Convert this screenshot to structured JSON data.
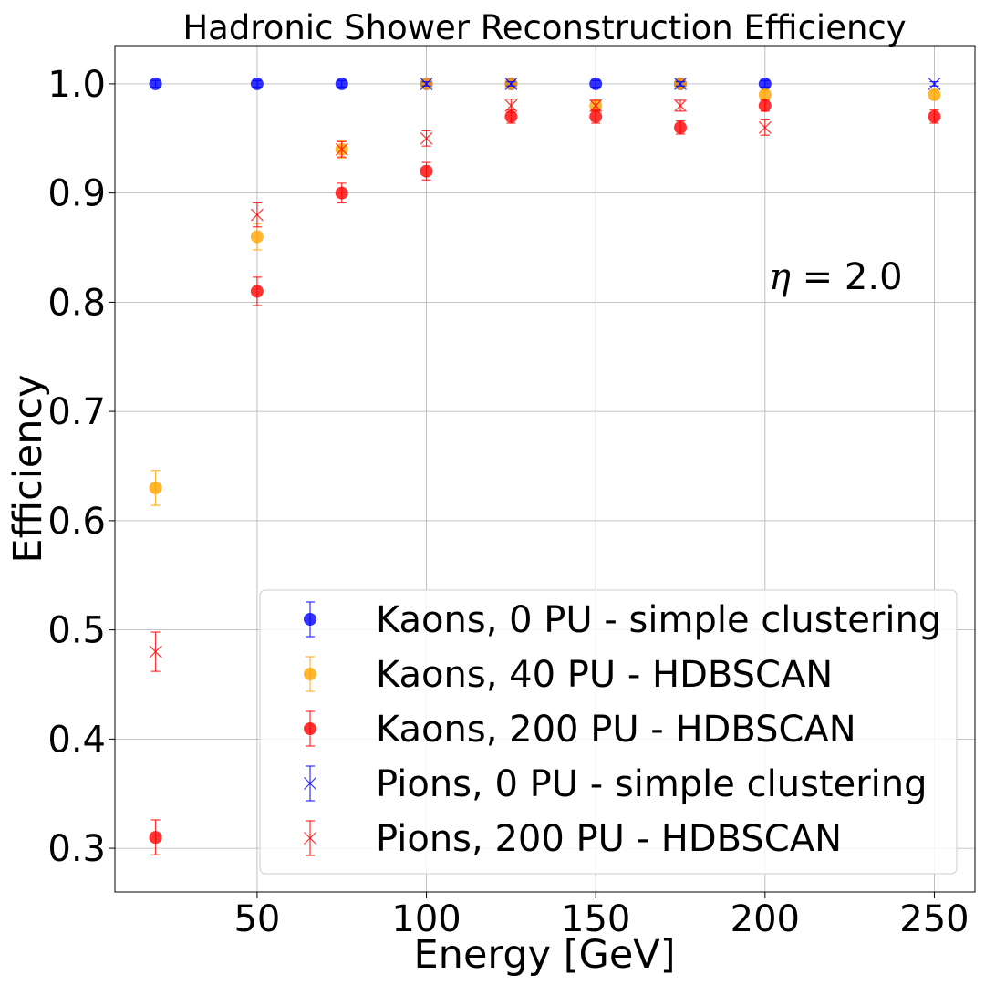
{
  "chart_data": {
    "type": "scatter",
    "title": "Hadronic Shower Reconstruction Efficiency",
    "xlabel": "Energy [GeV]",
    "ylabel": "Efficiency",
    "xlim": [
      8,
      262
    ],
    "ylim": [
      0.26,
      1.035
    ],
    "xticks": [
      50,
      100,
      150,
      200,
      250
    ],
    "xtick_labels": [
      "50",
      "100",
      "150",
      "200",
      "250"
    ],
    "yticks": [
      0.3,
      0.4,
      0.5,
      0.6,
      0.7,
      0.8,
      0.9,
      1.0
    ],
    "ytick_labels": [
      "0.3",
      "0.4",
      "0.5",
      "0.6",
      "0.7",
      "0.8",
      "0.9",
      "1.0"
    ],
    "grid": true,
    "legend_position": "lower-right",
    "annotation": {
      "math": "η",
      "text": " = 2.0",
      "x": 201,
      "y": 0.815
    },
    "series": [
      {
        "name": "Kaons, 0 PU - simple clustering",
        "marker": "circle",
        "color": "#0000ff",
        "x": [
          20,
          50,
          75,
          100,
          125,
          150,
          175,
          200
        ],
        "y": [
          1.0,
          1.0,
          1.0,
          1.0,
          1.0,
          1.0,
          1.0,
          1.0
        ],
        "err": [
          0.003,
          0.003,
          0.003,
          0.003,
          0.003,
          0.003,
          0.003,
          0.003
        ]
      },
      {
        "name": "Kaons, 40 PU - HDBSCAN",
        "marker": "circle",
        "color": "#ffa500",
        "x": [
          20,
          50,
          75,
          100,
          125,
          150,
          175,
          200,
          250
        ],
        "y": [
          0.63,
          0.86,
          0.94,
          1.0,
          1.0,
          0.98,
          1.0,
          0.99,
          0.99
        ],
        "err": [
          0.016,
          0.012,
          0.008,
          0.003,
          0.003,
          0.005,
          0.003,
          0.004,
          0.004
        ]
      },
      {
        "name": "Kaons, 200 PU - HDBSCAN",
        "marker": "circle",
        "color": "#ff0000",
        "x": [
          20,
          50,
          75,
          100,
          125,
          150,
          175,
          200,
          250
        ],
        "y": [
          0.31,
          0.81,
          0.9,
          0.92,
          0.97,
          0.97,
          0.96,
          0.98,
          0.97
        ],
        "err": [
          0.016,
          0.013,
          0.009,
          0.008,
          0.006,
          0.006,
          0.006,
          0.005,
          0.006
        ]
      },
      {
        "name": "Pions, 0 PU - simple clustering",
        "marker": "x",
        "color": "#0000ff",
        "x": [
          100,
          125,
          175,
          250
        ],
        "y": [
          1.0,
          1.0,
          1.0,
          1.0
        ],
        "err": [
          0.002,
          0.002,
          0.002,
          0.002
        ]
      },
      {
        "name": "Pions, 200 PU - HDBSCAN",
        "marker": "x",
        "color": "#ff0000",
        "x": [
          20,
          50,
          75,
          100,
          125,
          150,
          175,
          200
        ],
        "y": [
          0.48,
          0.88,
          0.94,
          0.95,
          0.98,
          0.98,
          0.98,
          0.96
        ],
        "err": [
          0.018,
          0.011,
          0.007,
          0.007,
          0.006,
          0.005,
          0.005,
          0.007
        ]
      }
    ]
  }
}
